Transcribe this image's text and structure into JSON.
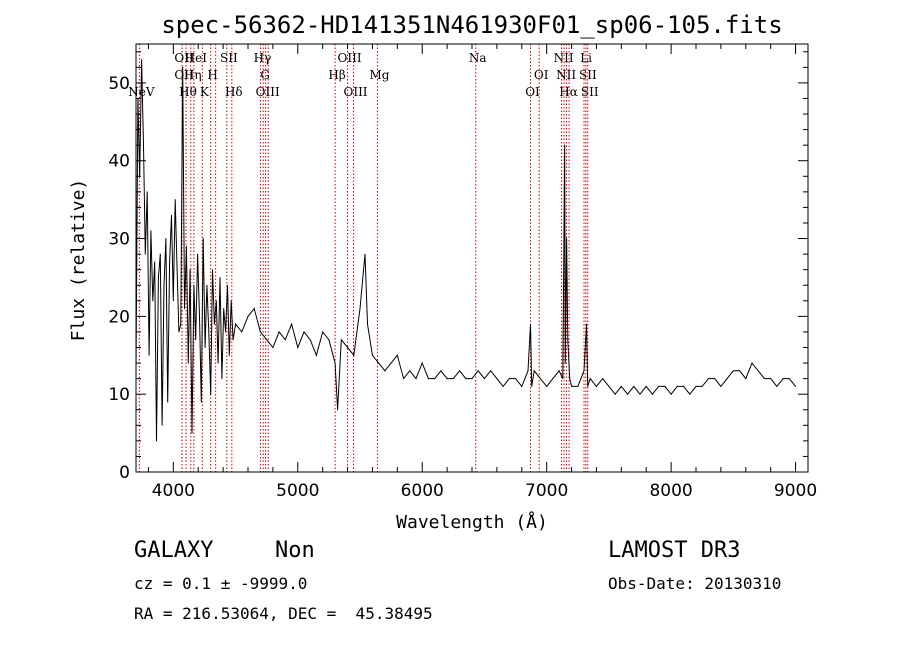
{
  "chart_data": {
    "type": "line",
    "title": "spec-56362-HD141351N461930F01_sp06-105.fits",
    "xlabel": "Wavelength (Å)",
    "ylabel": "Flux (relative)",
    "xlim": [
      3700,
      9100
    ],
    "ylim": [
      0,
      55
    ],
    "xticks": [
      4000,
      5000,
      6000,
      7000,
      8000,
      9000
    ],
    "yticks": [
      0,
      10,
      20,
      30,
      40,
      50
    ],
    "series": [
      {
        "name": "flux",
        "x": [
          3700,
          3715,
          3730,
          3745,
          3760,
          3775,
          3790,
          3805,
          3820,
          3835,
          3850,
          3865,
          3880,
          3895,
          3910,
          3925,
          3940,
          3955,
          3970,
          3985,
          4000,
          4015,
          4030,
          4045,
          4060,
          4075,
          4090,
          4105,
          4120,
          4135,
          4150,
          4165,
          4180,
          4195,
          4210,
          4225,
          4240,
          4255,
          4270,
          4285,
          4300,
          4315,
          4330,
          4345,
          4360,
          4375,
          4390,
          4405,
          4420,
          4435,
          4450,
          4465,
          4480,
          4500,
          4550,
          4600,
          4650,
          4700,
          4750,
          4800,
          4850,
          4900,
          4950,
          5000,
          5050,
          5100,
          5150,
          5200,
          5250,
          5300,
          5320,
          5350,
          5400,
          5450,
          5500,
          5540,
          5560,
          5600,
          5650,
          5700,
          5750,
          5800,
          5850,
          5900,
          5950,
          6000,
          6050,
          6100,
          6150,
          6200,
          6250,
          6300,
          6350,
          6400,
          6450,
          6500,
          6550,
          6600,
          6650,
          6700,
          6750,
          6800,
          6850,
          6870,
          6880,
          6900,
          6950,
          7000,
          7050,
          7100,
          7130,
          7145,
          7150,
          7160,
          7170,
          7185,
          7200,
          7250,
          7300,
          7320,
          7330,
          7350,
          7400,
          7450,
          7500,
          7550,
          7600,
          7650,
          7700,
          7750,
          7800,
          7850,
          7900,
          7950,
          8000,
          8050,
          8100,
          8150,
          8200,
          8250,
          8300,
          8350,
          8400,
          8450,
          8500,
          8550,
          8600,
          8650,
          8700,
          8750,
          8800,
          8850,
          8900,
          8950,
          9000
        ],
        "values": [
          13,
          48,
          38,
          53,
          42,
          28,
          36,
          15,
          31,
          22,
          27,
          4,
          25,
          28,
          6,
          24,
          30,
          9,
          27,
          33,
          22,
          35,
          26,
          18,
          19,
          52,
          21,
          29,
          14,
          26,
          5,
          24,
          17,
          28,
          20,
          9,
          30,
          16,
          24,
          18,
          10,
          26,
          19,
          22,
          14,
          25,
          12,
          21,
          18,
          24,
          15,
          22,
          17,
          19,
          18,
          20,
          21,
          18,
          17,
          16,
          18,
          17,
          19,
          16,
          18,
          17,
          15,
          18,
          17,
          14,
          8,
          17,
          16,
          15,
          21,
          28,
          19,
          15,
          14,
          13,
          14,
          15,
          12,
          13,
          12,
          14,
          12,
          12,
          13,
          12,
          12,
          13,
          12,
          12,
          13,
          12,
          13,
          12,
          11,
          12,
          12,
          11,
          13,
          19,
          11,
          13,
          12,
          11,
          12,
          13,
          12,
          42,
          14,
          30,
          17,
          12,
          11,
          11,
          13,
          19,
          11,
          12,
          11,
          12,
          11,
          10,
          11,
          10,
          11,
          10,
          11,
          10,
          11,
          11,
          10,
          11,
          11,
          10,
          11,
          11,
          12,
          12,
          11,
          12,
          13,
          13,
          12,
          14,
          13,
          12,
          12,
          11,
          12,
          12,
          11
        ]
      }
    ],
    "lines": [
      {
        "wl": 3727,
        "label": "NeV",
        "row": 3
      },
      {
        "wl": 4070,
        "label": "OII",
        "row": 1
      },
      {
        "wl": 4070,
        "label": "OII",
        "row": 2
      },
      {
        "wl": 4102,
        "label": "Hθ",
        "row": 3
      },
      {
        "wl": 4140,
        "label": "Hη",
        "row": 2
      },
      {
        "wl": 4165,
        "label": "HeI",
        "row": 1
      },
      {
        "wl": 4233,
        "label": "K",
        "row": 3
      },
      {
        "wl": 4300,
        "label": "H",
        "row": 2
      },
      {
        "wl": 4340,
        "label": "",
        "row": 0
      },
      {
        "wl": 4430,
        "label": "SII",
        "row": 1
      },
      {
        "wl": 4470,
        "label": "Hδ",
        "row": 3
      },
      {
        "wl": 4700,
        "label": "Hγ",
        "row": 1
      },
      {
        "wl": 4722,
        "label": "G",
        "row": 2
      },
      {
        "wl": 4742,
        "label": "OIII",
        "row": 3
      },
      {
        "wl": 4763,
        "label": "",
        "row": 0
      },
      {
        "wl": 5300,
        "label": "Hβ",
        "row": 2
      },
      {
        "wl": 5400,
        "label": "OIII",
        "row": 1
      },
      {
        "wl": 5448,
        "label": "OIII",
        "row": 3
      },
      {
        "wl": 5640,
        "label": "Mg",
        "row": 2
      },
      {
        "wl": 6430,
        "label": "Na",
        "row": 1
      },
      {
        "wl": 6870,
        "label": "OI",
        "row": 3
      },
      {
        "wl": 6940,
        "label": "OI",
        "row": 2
      },
      {
        "wl": 7120,
        "label": "NII",
        "row": 1
      },
      {
        "wl": 7140,
        "label": "NII",
        "row": 2
      },
      {
        "wl": 7160,
        "label": "Hα",
        "row": 3
      },
      {
        "wl": 7180,
        "label": "",
        "row": 0
      },
      {
        "wl": 7300,
        "label": "Li",
        "row": 1
      },
      {
        "wl": 7315,
        "label": "SII",
        "row": 2
      },
      {
        "wl": 7330,
        "label": "SII",
        "row": 3
      }
    ],
    "colors": {
      "spectrum": "#000000",
      "lines": "#cc0000"
    }
  },
  "info": {
    "class": "GALAXY",
    "subclass": "Non",
    "survey": "LAMOST DR3",
    "cz": "cz = 0.1 ± -9999.0",
    "obs_date": "Obs-Date: 20130310",
    "coords": "RA = 216.53064, DEC =  45.38495"
  }
}
